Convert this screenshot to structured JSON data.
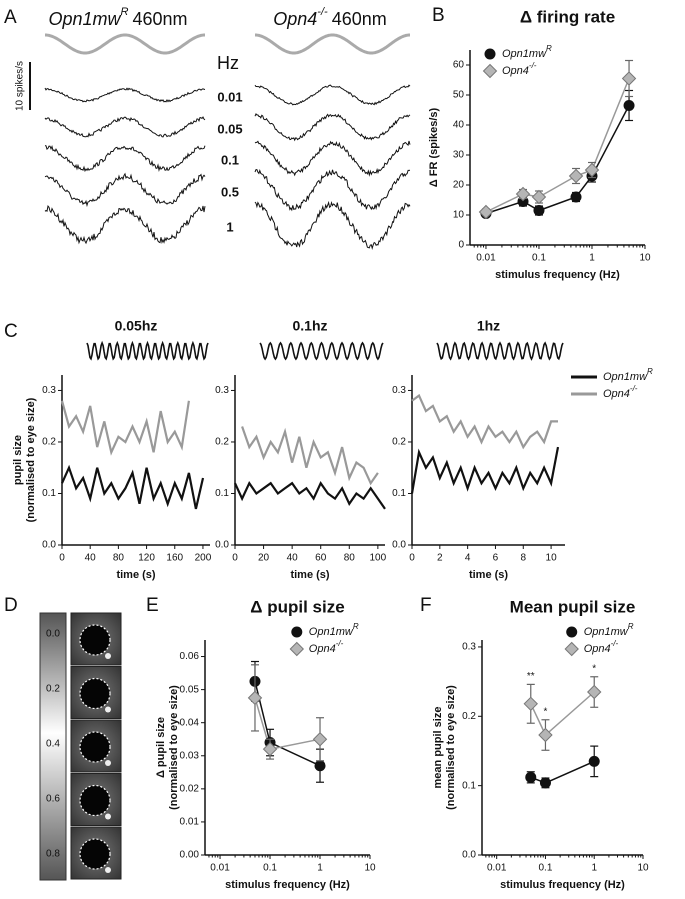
{
  "panel_labels": [
    "A",
    "B",
    "C",
    "D",
    "E",
    "F"
  ],
  "traces": {
    "genotypes": [
      {
        "name": "Opn1mw",
        "sup": "R",
        "wavelength": "460nm"
      },
      {
        "name": "Opn4",
        "sup": "-/-",
        "wavelength": "460nm"
      }
    ],
    "freq_header": "Hz",
    "freqs": [
      "0.01",
      "0.05",
      "0.1",
      "0.5",
      "1"
    ],
    "scale_bar": "10 spikes/s"
  },
  "pupil_images": {
    "scale": [
      "0.0",
      "0.2",
      "0.4",
      "0.6",
      "0.8"
    ]
  },
  "chart_data": [
    {
      "type": "line",
      "title": "Δ firing rate",
      "xlabel": "stimulus frequency (Hz)",
      "ylabel": [
        "Δ FR (spikes/s)"
      ],
      "xscale": "log",
      "xlim": [
        0.005,
        10
      ],
      "xticks": [
        0.01,
        0.1,
        1,
        10
      ],
      "ylim": [
        0,
        65
      ],
      "yticks": [
        0,
        10,
        20,
        30,
        40,
        50,
        60
      ],
      "legend": "upper left",
      "x": [
        0.01,
        0.05,
        0.1,
        0.5,
        1,
        5
      ],
      "series": [
        {
          "name": "Opn1mw",
          "name_sup": "R",
          "color": "#111111",
          "marker": "circle",
          "values": [
            10.5,
            14.5,
            11.5,
            16,
            23,
            46.5
          ],
          "errors": [
            1,
            1.5,
            1.5,
            1.5,
            2,
            5
          ]
        },
        {
          "name": "Opn4",
          "name_sup": "-/-",
          "color": "#999999",
          "marker": "diamond",
          "values": [
            11,
            17,
            16,
            23,
            25,
            55.5
          ],
          "errors": [
            1,
            1.5,
            2,
            2.5,
            2.5,
            6
          ]
        }
      ]
    },
    {
      "type": "line",
      "title": "0.05hz",
      "xlabel": "time (s)",
      "ylabel": [
        "pupil size",
        "(normalised to eye size)"
      ],
      "xlim": [
        0,
        210
      ],
      "xticks": [
        0,
        40,
        80,
        120,
        160,
        200
      ],
      "ylim": [
        0,
        0.33
      ],
      "yticks": [
        {
          "value": 0,
          "label": "0.0"
        },
        0.1,
        0.2,
        0.3
      ],
      "series": [
        {
          "name": "Opn1mw",
          "name_sup": "R",
          "color": "#111111",
          "x": [
            0,
            10,
            20,
            30,
            40,
            50,
            60,
            70,
            80,
            90,
            100,
            110,
            120,
            130,
            140,
            150,
            160,
            170,
            180,
            190,
            200
          ],
          "values": [
            0.12,
            0.15,
            0.11,
            0.13,
            0.09,
            0.15,
            0.1,
            0.12,
            0.09,
            0.11,
            0.14,
            0.08,
            0.15,
            0.09,
            0.12,
            0.08,
            0.12,
            0.09,
            0.14,
            0.07,
            0.13
          ]
        },
        {
          "name": "Opn4",
          "name_sup": "-/-",
          "color": "#999999",
          "x": [
            0,
            10,
            20,
            30,
            40,
            50,
            60,
            70,
            80,
            90,
            100,
            110,
            120,
            130,
            140,
            150,
            160,
            170,
            180
          ],
          "values": [
            0.28,
            0.23,
            0.25,
            0.22,
            0.27,
            0.19,
            0.24,
            0.18,
            0.21,
            0.2,
            0.23,
            0.2,
            0.24,
            0.18,
            0.26,
            0.2,
            0.22,
            0.19,
            0.28
          ]
        }
      ]
    },
    {
      "type": "line",
      "title": "0.1hz",
      "xlabel": "time (s)",
      "xlim": [
        0,
        105
      ],
      "xticks": [
        0,
        20,
        40,
        60,
        80,
        100
      ],
      "ylim": [
        0,
        0.33
      ],
      "yticks": [
        {
          "value": 0,
          "label": "0.0"
        },
        0.1,
        0.2,
        0.3
      ],
      "series": [
        {
          "name": "Opn1mw",
          "name_sup": "R",
          "color": "#111111",
          "x": [
            0,
            5,
            10,
            15,
            20,
            25,
            30,
            35,
            40,
            45,
            50,
            55,
            60,
            65,
            70,
            75,
            80,
            85,
            90,
            95,
            100,
            105
          ],
          "values": [
            0.12,
            0.09,
            0.12,
            0.1,
            0.11,
            0.12,
            0.1,
            0.11,
            0.12,
            0.1,
            0.11,
            0.09,
            0.12,
            0.1,
            0.09,
            0.11,
            0.08,
            0.1,
            0.09,
            0.11,
            0.09,
            0.07
          ]
        },
        {
          "name": "Opn4",
          "name_sup": "-/-",
          "color": "#999999",
          "x": [
            5,
            10,
            15,
            20,
            25,
            30,
            35,
            40,
            45,
            50,
            55,
            60,
            65,
            70,
            75,
            80,
            85,
            90,
            95,
            100
          ],
          "values": [
            0.23,
            0.19,
            0.21,
            0.17,
            0.2,
            0.18,
            0.22,
            0.16,
            0.21,
            0.15,
            0.2,
            0.17,
            0.18,
            0.14,
            0.19,
            0.13,
            0.16,
            0.15,
            0.12,
            0.14
          ]
        }
      ]
    },
    {
      "type": "line",
      "title": "1hz",
      "xlabel": "time (s)",
      "legend": "right outside",
      "xlim": [
        0,
        11
      ],
      "xticks": [
        0,
        2,
        4,
        6,
        8,
        10
      ],
      "ylim": [
        0,
        0.33
      ],
      "yticks": [
        {
          "value": 0,
          "label": "0.0"
        },
        0.1,
        0.2,
        0.3
      ],
      "series": [
        {
          "name": "Opn1mw",
          "name_sup": "R",
          "color": "#111111",
          "x": [
            0,
            0.5,
            1,
            1.5,
            2,
            2.5,
            3,
            3.5,
            4,
            4.5,
            5,
            5.5,
            6,
            6.5,
            7,
            7.5,
            8,
            8.5,
            9,
            9.5,
            10,
            10.5
          ],
          "values": [
            0.1,
            0.18,
            0.15,
            0.17,
            0.13,
            0.16,
            0.12,
            0.15,
            0.11,
            0.15,
            0.12,
            0.14,
            0.11,
            0.14,
            0.12,
            0.15,
            0.11,
            0.14,
            0.12,
            0.15,
            0.12,
            0.19
          ]
        },
        {
          "name": "Opn4",
          "name_sup": "-/-",
          "color": "#999999",
          "x": [
            0,
            0.5,
            1,
            1.5,
            2,
            2.5,
            3,
            3.5,
            4,
            4.5,
            5,
            5.5,
            6,
            6.5,
            7,
            7.5,
            8,
            8.5,
            9,
            9.5,
            10,
            10.5
          ],
          "values": [
            0.28,
            0.29,
            0.26,
            0.27,
            0.24,
            0.25,
            0.22,
            0.24,
            0.21,
            0.23,
            0.2,
            0.23,
            0.21,
            0.22,
            0.2,
            0.22,
            0.19,
            0.21,
            0.22,
            0.2,
            0.24,
            0.24
          ]
        }
      ]
    },
    {
      "type": "line",
      "title": "Δ pupil size",
      "xlabel": "stimulus frequency (Hz)",
      "ylabel": [
        "Δ pupil size",
        "(normalised to eye size)"
      ],
      "xscale": "log",
      "xlim": [
        0.005,
        10
      ],
      "xticks": [
        0.01,
        0.1,
        1,
        10
      ],
      "ylim": [
        0,
        0.065
      ],
      "yticks": [
        {
          "value": 0,
          "label": "0.00"
        },
        0.01,
        0.02,
        0.03,
        0.04,
        0.05,
        0.06
      ],
      "legend": "upper right",
      "x": [
        0.05,
        0.1,
        1
      ],
      "series": [
        {
          "name": "Opn1mw",
          "name_sup": "R",
          "color": "#111111",
          "marker": "circle",
          "values": [
            0.0525,
            0.034,
            0.027
          ],
          "errors": [
            0.006,
            0.004,
            0.005
          ]
        },
        {
          "name": "Opn4",
          "name_sup": "-/-",
          "color": "#999999",
          "marker": "diamond",
          "values": [
            0.0475,
            0.032,
            0.035
          ],
          "errors": [
            0.01,
            0.003,
            0.0065
          ]
        }
      ]
    },
    {
      "type": "line",
      "title": "Mean pupil size",
      "xlabel": "stimulus frequency (Hz)",
      "ylabel": [
        "mean pupil size",
        "(normalised to eye size)"
      ],
      "xscale": "log",
      "xlim": [
        0.005,
        10
      ],
      "xticks": [
        0.01,
        0.1,
        1,
        10
      ],
      "ylim": [
        0,
        0.31
      ],
      "yticks": [
        {
          "value": 0,
          "label": "0.0"
        },
        0.1,
        0.2,
        0.3
      ],
      "legend": "upper right",
      "x": [
        0.05,
        0.1,
        1
      ],
      "series": [
        {
          "name": "Opn1mw",
          "name_sup": "R",
          "color": "#111111",
          "marker": "circle",
          "values": [
            0.112,
            0.104,
            0.135
          ],
          "errors": [
            0.008,
            0.007,
            0.022
          ]
        },
        {
          "name": "Opn4",
          "name_sup": "-/-",
          "color": "#999999",
          "marker": "diamond",
          "values": [
            0.218,
            0.173,
            0.235
          ],
          "errors": [
            0.028,
            0.022,
            0.022
          ],
          "significance": [
            "**",
            "*",
            "*"
          ]
        }
      ]
    }
  ]
}
